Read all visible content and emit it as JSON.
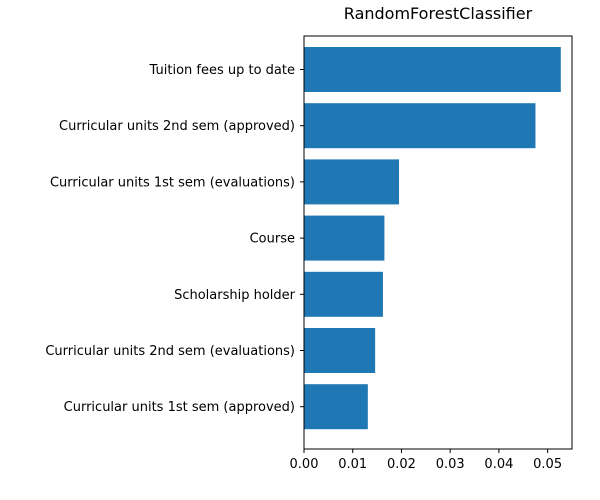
{
  "chart_data": {
    "type": "bar",
    "orientation": "horizontal",
    "title": "RandomForestClassifier",
    "xlabel": "",
    "ylabel": "",
    "categories": [
      "Tuition fees up to date",
      "Curricular units 2nd sem (approved)",
      "Curricular units 1st sem (evaluations)",
      "Course",
      "Scholarship holder",
      "Curricular units 2nd sem (evaluations)",
      "Curricular units 1st sem (approved)"
    ],
    "values": [
      0.0527,
      0.0475,
      0.0195,
      0.0165,
      0.0162,
      0.0146,
      0.0131
    ],
    "xlim": [
      0,
      0.055
    ],
    "xticks": [
      0.0,
      0.01,
      0.02,
      0.03,
      0.04,
      0.05
    ],
    "xtick_labels": [
      "0.00",
      "0.01",
      "0.02",
      "0.03",
      "0.04",
      "0.05"
    ],
    "bar_color": "#1f77b4",
    "grid": false,
    "legend": "none"
  }
}
